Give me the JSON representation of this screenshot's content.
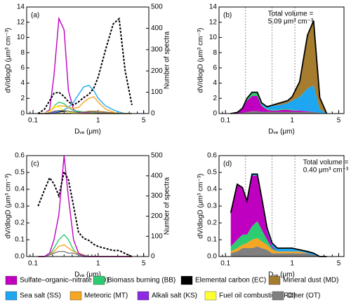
{
  "chart_data": [
    {
      "type": "line",
      "label": "(a)",
      "xlabel": "Dᵥₑ (μm)",
      "ylabel": "dV/dlogD (μm³ cm⁻³)",
      "y2label": "Number of spectra",
      "xlim": [
        0.08,
        6
      ],
      "xticks": [
        0.1,
        1,
        5
      ],
      "log_x": true,
      "ylim": [
        0,
        14
      ],
      "yticks": [
        0,
        2,
        4,
        6,
        8,
        10,
        12,
        14
      ],
      "y2lim": [
        0,
        500
      ],
      "y2ticks": [
        0,
        100,
        200,
        300,
        400,
        500
      ],
      "x": [
        0.12,
        0.15,
        0.18,
        0.21,
        0.25,
        0.3,
        0.35,
        0.42,
        0.5,
        0.6,
        0.72,
        0.86,
        1.0,
        1.3,
        1.7,
        2.1,
        2.6,
        3.3
      ],
      "series": [
        {
          "name": "Sulfate–organic–nitrate (SO)",
          "color": "#c000c0",
          "values": [
            0,
            0,
            0.5,
            5,
            12.5,
            11,
            3,
            0.5,
            0.2,
            0.1,
            0.1,
            0,
            0,
            0,
            0,
            0,
            0,
            0
          ]
        },
        {
          "name": "Biomass burning (BB)",
          "color": "#2ecc71",
          "values": [
            0,
            0,
            0.3,
            1,
            1.5,
            1.3,
            0.8,
            0.4,
            0.3,
            0.2,
            0.2,
            0.1,
            0.1,
            0,
            0,
            0,
            0,
            0
          ]
        },
        {
          "name": "Elemental carbon (EC)",
          "color": "#000000",
          "values": [
            0,
            0,
            0,
            0.1,
            0.2,
            0.3,
            0.2,
            0.2,
            0.2,
            0.2,
            0.2,
            0.2,
            0.1,
            0.1,
            0,
            0,
            0,
            0
          ]
        },
        {
          "name": "Mineral dust (MD)",
          "color": "#a67c2e",
          "values": [
            0,
            0,
            0,
            0,
            0,
            0,
            0,
            0.1,
            0.1,
            0.2,
            0.3,
            0.3,
            0.3,
            0.2,
            0.1,
            0,
            0,
            0
          ]
        },
        {
          "name": "Sea salt (SS)",
          "color": "#1ea7f0",
          "values": [
            0,
            0,
            0,
            0.1,
            0.3,
            0.5,
            0.8,
            1.5,
            2.5,
            3.5,
            3.7,
            3,
            2,
            1,
            0.5,
            0.2,
            0,
            0
          ]
        },
        {
          "name": "Meteoric (MT)",
          "color": "#f5a623",
          "values": [
            0,
            0,
            0.2,
            0.8,
            1,
            1,
            0.8,
            0.7,
            0.8,
            1.5,
            2,
            2.2,
            1.5,
            0.6,
            0.2,
            0,
            0,
            0
          ]
        },
        {
          "name": "Alkali salt (KS)",
          "color": "#8b2be2",
          "values": [
            0,
            0,
            0,
            0.2,
            0.4,
            0.4,
            0.3,
            0.2,
            0.1,
            0,
            0,
            0,
            0,
            0,
            0,
            0,
            0,
            0
          ]
        },
        {
          "name": "Fuel oil combustion (FO)",
          "color": "#ffff33",
          "values": [
            0,
            0,
            0.3,
            1,
            0.8,
            0.4,
            0.2,
            0.1,
            0,
            0,
            0,
            0,
            0,
            0,
            0,
            0,
            0,
            0
          ]
        },
        {
          "name": "Other (OT)",
          "color": "#808080",
          "values": [
            0,
            0,
            0.1,
            0.3,
            0.4,
            0.4,
            0.3,
            0.2,
            0.2,
            0.2,
            0.2,
            0.2,
            0.1,
            0.1,
            0,
            0,
            0,
            0
          ]
        },
        {
          "color": "#000000",
          "axis": "y2",
          "style": "dashed",
          "values": [
            0,
            20,
            60,
            95,
            100,
            80,
            55,
            40,
            55,
            75,
            90,
            120,
            170,
            300,
            420,
            445,
            200,
            40
          ]
        }
      ]
    },
    {
      "type": "area",
      "label": "(b)",
      "xlabel": "Dᵥₑ (μm)",
      "ylabel": "dV/dlogD (μm³ cm⁻³)",
      "annotation": [
        "Total volume =",
        "5.09 μm³ cm⁻³"
      ],
      "xlim": [
        0.08,
        6
      ],
      "xticks": [
        0.1,
        1,
        5
      ],
      "log_x": true,
      "ylim": [
        0,
        14
      ],
      "yticks": [
        0,
        2,
        4,
        6,
        8,
        10,
        12,
        14
      ],
      "vlines": [
        0.2,
        0.5,
        1.1
      ],
      "x": [
        0.12,
        0.15,
        0.18,
        0.21,
        0.25,
        0.3,
        0.35,
        0.42,
        0.5,
        0.6,
        0.72,
        0.86,
        1.0,
        1.3,
        1.7,
        2.1,
        2.6,
        3.3
      ],
      "series": [
        {
          "color": "#808080",
          "values": [
            0,
            0.05,
            0.1,
            0.2,
            0.3,
            0.3,
            0.2,
            0.2,
            0.2,
            0.2,
            0.2,
            0.2,
            0.2,
            0.2,
            0.2,
            0.2,
            0.1,
            0
          ]
        },
        {
          "color": "#c000c0",
          "values": [
            0,
            0.1,
            0.5,
            1.5,
            2,
            2,
            0.8,
            0.3,
            0.2,
            0.2,
            0.3,
            0.3,
            0.2,
            0.2,
            0.1,
            0,
            0,
            0
          ]
        },
        {
          "color": "#2ecc71",
          "values": [
            0,
            0,
            0.1,
            0.3,
            0.4,
            0.4,
            0.2,
            0.1,
            0.1,
            0.1,
            0.1,
            0.1,
            0.1,
            0,
            0,
            0,
            0,
            0
          ]
        },
        {
          "color": "#1ea7f0",
          "values": [
            0,
            0,
            0,
            0,
            0.1,
            0.1,
            0.2,
            0.3,
            0.5,
            0.6,
            0.6,
            0.8,
            1.2,
            1.8,
            3,
            3.5,
            0.5,
            0
          ]
        },
        {
          "color": "#a67c2e",
          "values": [
            0,
            0,
            0,
            0,
            0,
            0,
            0,
            0,
            0.1,
            0.2,
            0.3,
            0.3,
            0.5,
            2,
            7,
            8.5,
            1.5,
            0
          ]
        }
      ]
    },
    {
      "type": "line",
      "label": "(c)",
      "xlabel": "Dᵥₑ (μm)",
      "ylabel": "dV/dlogD (μm³ cm⁻³)",
      "y2label": "Number of spectra",
      "xlim": [
        0.08,
        6
      ],
      "xticks": [
        0.1,
        1,
        5
      ],
      "log_x": true,
      "ylim": [
        0,
        0.6
      ],
      "yticks": [
        {
          "value": 0,
          "label": "0.0"
        },
        0.1,
        0.2,
        0.3,
        0.4,
        0.5,
        0.6
      ],
      "y2lim": [
        0,
        500
      ],
      "y2ticks": [
        0,
        100,
        200,
        300,
        400,
        500
      ],
      "x": [
        0.12,
        0.15,
        0.18,
        0.21,
        0.25,
        0.3,
        0.35,
        0.42,
        0.5,
        0.6,
        0.72,
        0.86,
        1.0,
        1.3,
        1.7,
        2.1,
        2.6,
        3.3
      ],
      "series": [
        {
          "color": "#2ecc71",
          "values": [
            0,
            0,
            0.01,
            0.05,
            0.1,
            0.13,
            0.1,
            0.04,
            0.01,
            0,
            0,
            0,
            0,
            0,
            0,
            0,
            0,
            0
          ]
        },
        {
          "color": "#f5a623",
          "values": [
            0,
            0,
            0.01,
            0.03,
            0.06,
            0.07,
            0.05,
            0.03,
            0.02,
            0.01,
            0,
            0,
            0,
            0,
            0,
            0,
            0,
            0
          ]
        },
        {
          "color": "#808080",
          "values": [
            0,
            0,
            0.01,
            0.02,
            0.03,
            0.03,
            0.02,
            0.02,
            0.01,
            0.01,
            0,
            0,
            0,
            0,
            0,
            0,
            0,
            0
          ]
        },
        {
          "color": "#c000c0",
          "values": [
            0,
            0,
            0.02,
            0.1,
            0.25,
            0.6,
            0.35,
            0.1,
            0.02,
            0,
            0,
            0,
            0,
            0,
            0,
            0,
            0,
            0
          ]
        },
        {
          "color": "#000000",
          "axis": "y2",
          "style": "dashed",
          "values": [
            250,
            330,
            390,
            360,
            300,
            420,
            380,
            250,
            120,
            90,
            80,
            60,
            50,
            40,
            30,
            30,
            15,
            0
          ]
        }
      ]
    },
    {
      "type": "area",
      "label": "(d)",
      "xlabel": "Dᵥₑ (μm)",
      "ylabel": "dV/dlogD (μm³ cm⁻³)",
      "annotation": [
        "Total volume =",
        "0.40 μm³ cm⁻³"
      ],
      "xlim": [
        0.08,
        6
      ],
      "xticks": [
        0.1,
        1,
        5
      ],
      "log_x": true,
      "ylim": [
        0,
        0.6
      ],
      "yticks": [
        {
          "value": 0,
          "label": "0.0"
        },
        0.1,
        0.2,
        0.3,
        0.4,
        0.5,
        0.6
      ],
      "vlines": [
        0.2,
        0.5,
        1.1
      ],
      "x": [
        0.12,
        0.15,
        0.18,
        0.21,
        0.25,
        0.3,
        0.35,
        0.42,
        0.5,
        0.6,
        0.72,
        0.86,
        1.0,
        1.3,
        1.7,
        2.1,
        2.6,
        3.3
      ],
      "series": [
        {
          "color": "#808080",
          "values": [
            0.02,
            0.03,
            0.05,
            0.05,
            0.05,
            0.06,
            0.05,
            0.04,
            0.02,
            0.02,
            0.02,
            0.02,
            0.02,
            0.02,
            0.02,
            0.01,
            0,
            0
          ]
        },
        {
          "color": "#f5a623",
          "values": [
            0.01,
            0.02,
            0.02,
            0.03,
            0.05,
            0.05,
            0.04,
            0.03,
            0.02,
            0.01,
            0.01,
            0.01,
            0.01,
            0.01,
            0,
            0,
            0,
            0
          ]
        },
        {
          "color": "#2ecc71",
          "values": [
            0.03,
            0.05,
            0.06,
            0.05,
            0.08,
            0.1,
            0.07,
            0.03,
            0.01,
            0,
            0,
            0,
            0,
            0,
            0,
            0,
            0,
            0
          ]
        },
        {
          "color": "#c000c0",
          "values": [
            0.2,
            0.33,
            0.28,
            0.2,
            0.3,
            0.27,
            0.18,
            0.05,
            0.01,
            0,
            0,
            0,
            0,
            0,
            0,
            0,
            0,
            0
          ]
        },
        {
          "color": "#1ea7f0",
          "values": [
            0,
            0,
            0,
            0,
            0.01,
            0.01,
            0.01,
            0.02,
            0.02,
            0.02,
            0.02,
            0.02,
            0.02,
            0.01,
            0.01,
            0.01,
            0,
            0
          ]
        }
      ]
    }
  ]
}
